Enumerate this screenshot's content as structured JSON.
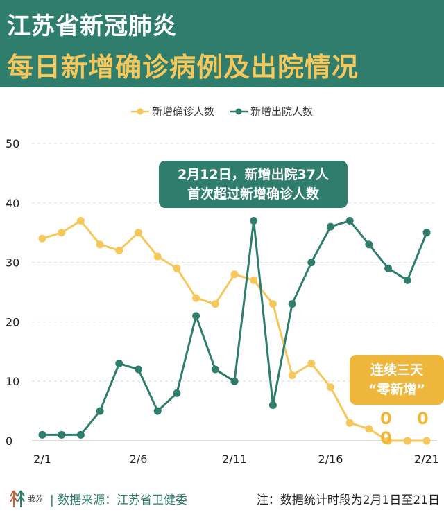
{
  "header": {
    "title1": "江苏省新冠肺炎",
    "title2": "每日新增确诊病例及出院情况"
  },
  "annotations": {
    "peak_line1": "2月12日，新增出院37人",
    "peak_line2": "首次超过新增确诊人数",
    "zero_line1": "连续三天",
    "zero_line2": "“零新增”",
    "zeros": "0 0 0"
  },
  "footer": {
    "logo_text": "我苏",
    "source": "| 数据来源：江苏省卫健委",
    "note": "注：数据统计时段为2月1日至21日"
  },
  "colors": {
    "confirmed": "#f6c75b",
    "discharged": "#2f7d6c"
  },
  "chart_data": {
    "type": "line",
    "title": "江苏省新冠肺炎每日新增确诊病例及出院情况",
    "x": [
      "2/1",
      "2/2",
      "2/3",
      "2/4",
      "2/5",
      "2/6",
      "2/7",
      "2/8",
      "2/9",
      "2/10",
      "2/11",
      "2/12",
      "2/13",
      "2/14",
      "2/15",
      "2/16",
      "2/17",
      "2/18",
      "2/19",
      "2/20",
      "2/21"
    ],
    "xticks": [
      "2/1",
      "2/6",
      "2/11",
      "2/16",
      "2/21"
    ],
    "yticks": [
      "0",
      "10",
      "20",
      "30",
      "40",
      "50"
    ],
    "ylim": [
      0,
      50
    ],
    "grid": true,
    "legend": "top-center",
    "series": [
      {
        "name": "新增确诊人数",
        "color": "#f6c75b",
        "values": [
          34,
          35,
          37,
          33,
          32,
          35,
          31,
          29,
          24,
          23,
          28,
          27,
          23,
          11,
          13,
          9,
          3,
          2,
          0,
          0,
          0
        ]
      },
      {
        "name": "新增出院人数",
        "color": "#2f7d6c",
        "values": [
          1,
          1,
          1,
          5,
          13,
          12,
          5,
          8,
          21,
          12,
          10,
          37,
          6,
          23,
          30,
          36,
          37,
          33,
          29,
          27,
          35
        ]
      }
    ]
  }
}
